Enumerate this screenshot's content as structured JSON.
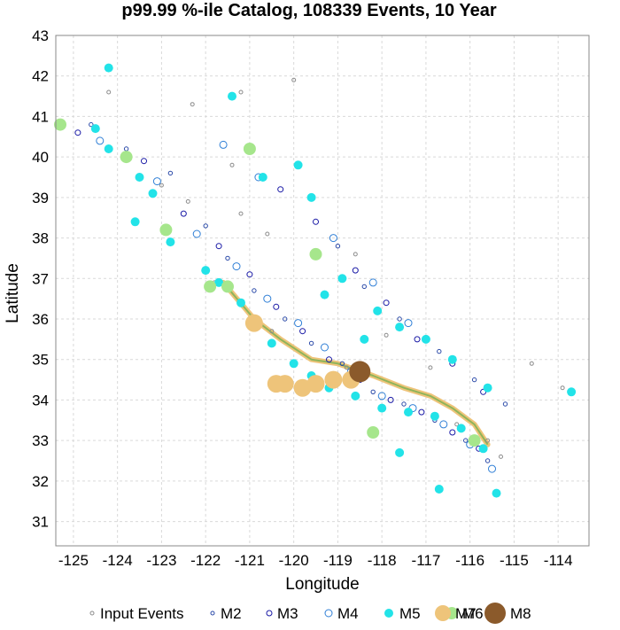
{
  "chart_data": {
    "type": "scatter",
    "title": "p99.99 %-ile Catalog, 108339 Events, 10 Year",
    "xlabel": "Longitude",
    "ylabel": "Latitude",
    "xlim": [
      -125.4,
      -113.3
    ],
    "ylim": [
      30.4,
      43.0
    ],
    "xticks": [
      -125,
      -124,
      -123,
      -122,
      -121,
      -120,
      -119,
      -118,
      -117,
      -116,
      -115,
      -114
    ],
    "yticks": [
      31,
      32,
      33,
      34,
      35,
      36,
      37,
      38,
      39,
      40,
      41,
      42,
      43
    ],
    "grid": true,
    "legend_position": "bottom",
    "total_events": 108339,
    "series": [
      {
        "name": "Input Events",
        "color": "#8c8c8c",
        "marker": "open-circle",
        "points": [
          [
            -124.2,
            41.6
          ],
          [
            -123.0,
            39.3
          ],
          [
            -122.4,
            38.9
          ],
          [
            -121.4,
            39.8
          ],
          [
            -121.2,
            38.6
          ],
          [
            -120.6,
            38.1
          ],
          [
            -118.6,
            37.6
          ],
          [
            -117.9,
            35.6
          ],
          [
            -116.9,
            34.8
          ],
          [
            -115.6,
            33.0
          ],
          [
            -115.3,
            32.6
          ],
          [
            -114.6,
            34.9
          ],
          [
            -113.9,
            34.3
          ],
          [
            -116.3,
            33.4
          ],
          [
            -118.8,
            34.8
          ],
          [
            -120.5,
            35.7
          ],
          [
            -120.0,
            41.9
          ],
          [
            -121.2,
            41.6
          ],
          [
            -122.3,
            41.3
          ],
          [
            -121.8,
            36.9
          ]
        ]
      },
      {
        "name": "M2",
        "color": "#2b4aa8",
        "marker": "open-circle",
        "points": [
          [
            -124.6,
            40.8
          ],
          [
            -123.8,
            40.2
          ],
          [
            -122.8,
            39.6
          ],
          [
            -122.0,
            38.3
          ],
          [
            -121.5,
            37.5
          ],
          [
            -120.9,
            36.7
          ],
          [
            -120.2,
            36.0
          ],
          [
            -119.6,
            35.4
          ],
          [
            -118.9,
            34.9
          ],
          [
            -118.2,
            34.2
          ],
          [
            -117.5,
            33.9
          ],
          [
            -116.8,
            33.5
          ],
          [
            -116.1,
            33.0
          ],
          [
            -115.6,
            32.5
          ],
          [
            -119.0,
            37.8
          ],
          [
            -118.4,
            36.8
          ],
          [
            -117.6,
            36.0
          ],
          [
            -116.7,
            35.2
          ],
          [
            -115.9,
            34.5
          ],
          [
            -115.2,
            33.9
          ]
        ]
      },
      {
        "name": "M3",
        "color": "#1a1aa6",
        "marker": "open-circle",
        "points": [
          [
            -124.9,
            40.6
          ],
          [
            -123.4,
            39.9
          ],
          [
            -122.5,
            38.6
          ],
          [
            -121.7,
            37.8
          ],
          [
            -121.0,
            37.1
          ],
          [
            -120.4,
            36.3
          ],
          [
            -119.8,
            35.7
          ],
          [
            -119.2,
            35.0
          ],
          [
            -118.5,
            34.5
          ],
          [
            -117.8,
            34.0
          ],
          [
            -117.1,
            33.7
          ],
          [
            -116.4,
            33.2
          ],
          [
            -115.8,
            32.8
          ],
          [
            -118.6,
            37.2
          ],
          [
            -117.9,
            36.4
          ],
          [
            -117.2,
            35.5
          ],
          [
            -116.4,
            34.9
          ],
          [
            -115.7,
            34.2
          ],
          [
            -119.5,
            38.4
          ],
          [
            -120.3,
            39.2
          ]
        ]
      },
      {
        "name": "M4",
        "color": "#2f7fd6",
        "marker": "open-circle",
        "points": [
          [
            -124.4,
            40.4
          ],
          [
            -123.1,
            39.4
          ],
          [
            -122.2,
            38.1
          ],
          [
            -121.3,
            37.3
          ],
          [
            -120.6,
            36.5
          ],
          [
            -119.9,
            35.9
          ],
          [
            -119.3,
            35.3
          ],
          [
            -118.7,
            34.7
          ],
          [
            -118.0,
            34.1
          ],
          [
            -117.3,
            33.8
          ],
          [
            -116.6,
            33.4
          ],
          [
            -116.0,
            32.9
          ],
          [
            -115.5,
            32.3
          ],
          [
            -118.2,
            36.9
          ],
          [
            -117.4,
            35.9
          ],
          [
            -120.8,
            39.5
          ],
          [
            -121.6,
            40.3
          ],
          [
            -119.1,
            38.0
          ]
        ]
      },
      {
        "name": "M5",
        "color": "#22e3e8",
        "marker": "filled-circle",
        "points": [
          [
            -124.2,
            42.2
          ],
          [
            -121.4,
            41.5
          ],
          [
            -124.5,
            40.7
          ],
          [
            -124.2,
            40.2
          ],
          [
            -123.5,
            39.5
          ],
          [
            -123.2,
            39.1
          ],
          [
            -123.6,
            38.4
          ],
          [
            -122.8,
            37.9
          ],
          [
            -122.0,
            37.2
          ],
          [
            -121.7,
            36.9
          ],
          [
            -121.2,
            36.4
          ],
          [
            -120.9,
            35.8
          ],
          [
            -120.5,
            35.4
          ],
          [
            -120.0,
            34.9
          ],
          [
            -119.6,
            34.6
          ],
          [
            -119.2,
            34.3
          ],
          [
            -118.6,
            34.1
          ],
          [
            -118.0,
            33.8
          ],
          [
            -117.4,
            33.7
          ],
          [
            -116.8,
            33.6
          ],
          [
            -116.2,
            33.3
          ],
          [
            -115.7,
            32.8
          ],
          [
            -115.4,
            31.7
          ],
          [
            -116.7,
            31.8
          ],
          [
            -117.6,
            32.7
          ],
          [
            -118.4,
            35.5
          ],
          [
            -117.6,
            35.8
          ],
          [
            -118.1,
            36.2
          ],
          [
            -119.3,
            36.6
          ],
          [
            -118.9,
            37.0
          ],
          [
            -119.9,
            39.8
          ],
          [
            -120.7,
            39.5
          ],
          [
            -119.6,
            39.0
          ],
          [
            -116.4,
            35.0
          ],
          [
            -117.0,
            35.5
          ],
          [
            -113.7,
            34.2
          ],
          [
            -115.6,
            34.3
          ]
        ]
      },
      {
        "name": "M6",
        "color": "#a6e68c",
        "marker": "filled-circle",
        "points": [
          [
            -125.3,
            40.8
          ],
          [
            -123.8,
            40.0
          ],
          [
            -122.9,
            38.2
          ],
          [
            -121.9,
            36.8
          ],
          [
            -121.5,
            36.8
          ],
          [
            -119.5,
            37.6
          ],
          [
            -118.2,
            33.2
          ],
          [
            -115.9,
            33.0
          ],
          [
            -121.0,
            40.2
          ]
        ]
      },
      {
        "name": "M7",
        "color": "#eec47a",
        "marker": "filled-circle",
        "points": [
          [
            -120.9,
            35.9
          ],
          [
            -120.2,
            34.4
          ],
          [
            -119.8,
            34.3
          ],
          [
            -119.5,
            34.4
          ],
          [
            -119.1,
            34.5
          ],
          [
            -118.7,
            34.5
          ],
          [
            -120.4,
            34.4
          ]
        ]
      },
      {
        "name": "M8",
        "color": "#8b5a2b",
        "marker": "filled-circle",
        "points": [
          [
            -118.5,
            34.7
          ]
        ]
      }
    ],
    "fault_trace": [
      [
        -121.6,
        36.9
      ],
      [
        -120.9,
        36.0
      ],
      [
        -120.3,
        35.5
      ],
      [
        -119.6,
        35.0
      ],
      [
        -119.0,
        34.9
      ],
      [
        -118.2,
        34.6
      ],
      [
        -117.5,
        34.3
      ],
      [
        -116.9,
        34.1
      ],
      [
        -116.4,
        33.8
      ],
      [
        -115.9,
        33.4
      ],
      [
        -115.6,
        32.9
      ]
    ],
    "legend": [
      {
        "label": "Input Events",
        "color": "#8c8c8c",
        "marker": "open-circle",
        "r": 2
      },
      {
        "label": "M2",
        "color": "#2b4aa8",
        "marker": "open-circle",
        "r": 2
      },
      {
        "label": "M3",
        "color": "#1a1aa6",
        "marker": "open-circle",
        "r": 3
      },
      {
        "label": "M4",
        "color": "#2f7fd6",
        "marker": "open-circle",
        "r": 4
      },
      {
        "label": "M5",
        "color": "#22e3e8",
        "marker": "filled-circle",
        "r": 5
      },
      {
        "label": "M6",
        "color": "#a6e68c",
        "marker": "filled-circle",
        "r": 7
      },
      {
        "label": "M7",
        "color": "#eec47a",
        "marker": "filled-circle",
        "r": 9
      },
      {
        "label": "M8",
        "color": "#8b5a2b",
        "marker": "filled-circle",
        "r": 12
      }
    ]
  }
}
